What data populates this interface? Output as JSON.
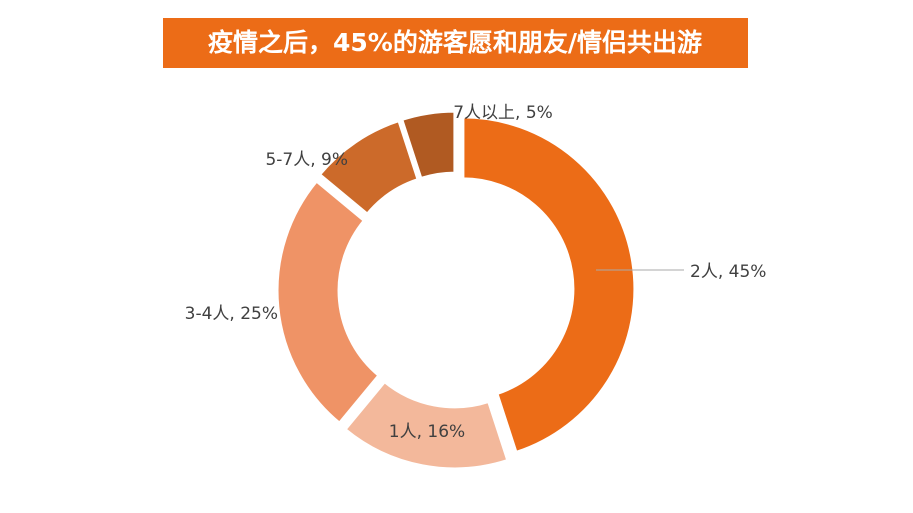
{
  "chart_data": {
    "type": "donut",
    "title": "疫情之后，45%的游客愿和朋友/情侣共出游",
    "values": [
      45,
      16,
      25,
      9,
      5
    ],
    "value_labels": [
      "2人, 45%",
      "1人, 16%",
      "3-4人, 25%",
      "5-7人, 9%",
      "7人以上, 5%"
    ],
    "colors": [
      "#ec6c17",
      "#f3b89b",
      "#ef9366",
      "#cc6a2a",
      "#b05a22"
    ]
  }
}
